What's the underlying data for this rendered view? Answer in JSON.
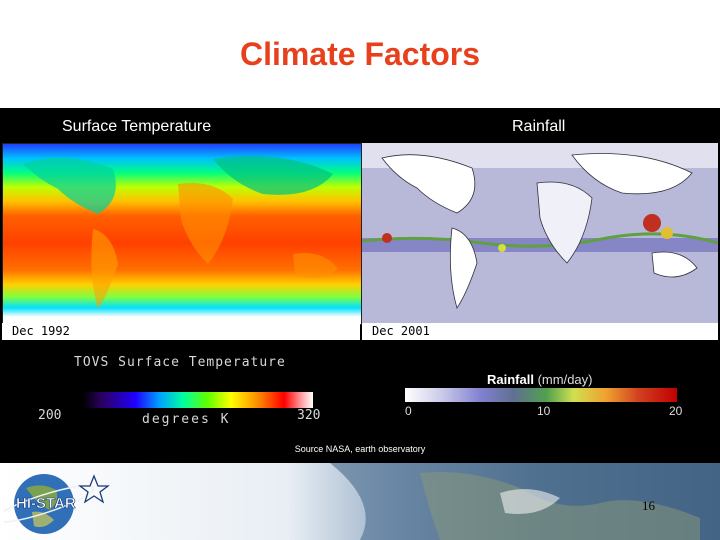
{
  "slide": {
    "title": "Climate Factors",
    "source": "Source NASA, earth observatory",
    "page_number": "16"
  },
  "panels": {
    "temperature": {
      "heading": "Surface Temperature",
      "date": "Dec 1992",
      "scale_title": "TOVS Surface Temperature",
      "scale_min": "200",
      "scale_max": "320",
      "scale_unit": "degrees K"
    },
    "rainfall": {
      "heading": "Rainfall",
      "date": "Dec 2001",
      "scale_title": "Rainfall",
      "scale_unit": "(mm/day)",
      "ticks": [
        "0",
        "10",
        "20"
      ]
    }
  },
  "logo": {
    "text": "HI-STAR"
  },
  "colors": {
    "title": "#e8401c",
    "panel_background": "#000000"
  }
}
